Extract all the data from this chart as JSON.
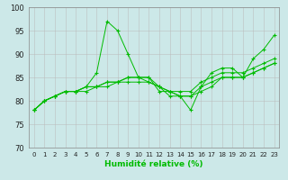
{
  "xlabel": "Humidité relative (%)",
  "bg_color": "#cce8e8",
  "grid_color": "#bbbbbb",
  "line_color": "#00bb00",
  "xlim": [
    -0.5,
    23.5
  ],
  "ylim": [
    70,
    100
  ],
  "yticks": [
    70,
    75,
    80,
    85,
    90,
    95,
    100
  ],
  "xticks": [
    0,
    1,
    2,
    3,
    4,
    5,
    6,
    7,
    8,
    9,
    10,
    11,
    12,
    13,
    14,
    15,
    16,
    17,
    18,
    19,
    20,
    21,
    22,
    23
  ],
  "series": [
    [
      78,
      80,
      81,
      82,
      82,
      83,
      86,
      97,
      95,
      90,
      85,
      85,
      82,
      82,
      81,
      78,
      83,
      86,
      87,
      87,
      85,
      89,
      91,
      94
    ],
    [
      78,
      80,
      81,
      82,
      82,
      83,
      83,
      84,
      84,
      85,
      85,
      85,
      83,
      82,
      82,
      82,
      84,
      85,
      86,
      86,
      86,
      87,
      88,
      89
    ],
    [
      78,
      80,
      81,
      82,
      82,
      83,
      83,
      84,
      84,
      85,
      85,
      84,
      83,
      82,
      81,
      81,
      83,
      84,
      85,
      85,
      85,
      86,
      87,
      88
    ],
    [
      78,
      80,
      81,
      82,
      82,
      82,
      83,
      83,
      84,
      84,
      84,
      84,
      83,
      81,
      81,
      81,
      82,
      83,
      85,
      85,
      85,
      86,
      87,
      88
    ]
  ]
}
